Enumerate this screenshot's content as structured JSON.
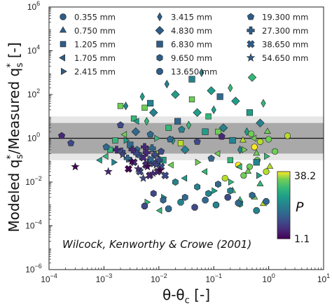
{
  "chart_data": {
    "type": "scatter",
    "title": "",
    "xlabel_main": "θ-θ",
    "xlabel_sub": "c",
    "xlabel_unit": " [-]",
    "ylabel_main": "Modeled q",
    "ylabel_sup1": "*",
    "ylabel_sub1": "s",
    "ylabel_mid": "/Measured q",
    "ylabel_sup2": "*",
    "ylabel_sub2": "s",
    "ylabel_unit": " [-]",
    "x_scale": "log",
    "y_scale": "log",
    "xlim": [
      0.0001,
      10
    ],
    "ylim": [
      1e-06,
      1000000
    ],
    "x_ticks": [
      {
        "value": 0.0001,
        "base": "10",
        "exp": "−4"
      },
      {
        "value": 0.001,
        "base": "10",
        "exp": "−3"
      },
      {
        "value": 0.01,
        "base": "10",
        "exp": "−2"
      },
      {
        "value": 0.1,
        "base": "10",
        "exp": "−1"
      },
      {
        "value": 1,
        "base": "10",
        "exp": "0"
      },
      {
        "value": 10,
        "base": "10",
        "exp": "1"
      }
    ],
    "y_ticks": [
      {
        "value": 1e-06,
        "base": "10",
        "exp": "−6"
      },
      {
        "value": 0.0001,
        "base": "10",
        "exp": "−4"
      },
      {
        "value": 0.01,
        "base": "10",
        "exp": "−2"
      },
      {
        "value": 1,
        "base": "10",
        "exp": "0"
      },
      {
        "value": 100,
        "base": "10",
        "exp": "2"
      },
      {
        "value": 10000,
        "base": "10",
        "exp": "4"
      },
      {
        "value": 1000000,
        "base": "10",
        "exp": "6"
      }
    ],
    "reference_line_y": 1,
    "bands": [
      {
        "low": 0.1,
        "high": 10,
        "color": "#e6e6e6"
      },
      {
        "low": 0.2,
        "high": 5,
        "color": "#a9a9a9"
      }
    ],
    "annotation": "Wilcock, Kenworthy & Crowe (2001)",
    "legend_position": "top",
    "colorbar": {
      "label": "P",
      "min": 1.1,
      "max": 38.2,
      "min_label": "1.1",
      "max_label": "38.2",
      "colormap": "viridis"
    },
    "series": [
      {
        "name": "0.355 mm",
        "marker": "circle",
        "points": [
          [
            0.45,
            0.05
          ],
          [
            0.62,
            0.1
          ],
          [
            0.9,
            0.03
          ],
          [
            1.3,
            0.25
          ],
          [
            2.2,
            1.3
          ],
          [
            0.55,
            0.4
          ],
          [
            0.35,
            0.02
          ],
          [
            0.7,
            0.7
          ],
          [
            0.28,
            0.06
          ],
          [
            1.0,
            0.9
          ],
          [
            0.16,
            0.015
          ],
          [
            0.48,
            1.6
          ]
        ]
      },
      {
        "name": "0.750 mm",
        "marker": "triangle-up",
        "points": [
          [
            0.3,
            0.0015
          ],
          [
            0.55,
            0.002
          ],
          [
            0.8,
            0.001
          ],
          [
            0.7,
            0.008
          ],
          [
            0.42,
            0.03
          ],
          [
            1.05,
            0.05
          ],
          [
            0.22,
            0.004
          ],
          [
            0.6,
            0.2
          ],
          [
            0.34,
            0.8
          ],
          [
            0.95,
            2.0
          ]
        ]
      },
      {
        "name": "1.205 mm",
        "marker": "square",
        "points": [
          [
            0.0013,
            0.3
          ],
          [
            0.0016,
            0.8
          ],
          [
            0.002,
            30
          ],
          [
            0.0035,
            8
          ],
          [
            0.0055,
            25
          ],
          [
            0.009,
            0.2
          ],
          [
            0.015,
            3
          ],
          [
            0.04,
            60
          ],
          [
            0.025,
            0.6
          ],
          [
            0.08,
            10
          ],
          [
            0.12,
            2
          ],
          [
            0.2,
            0.1
          ]
        ]
      },
      {
        "name": "1.705 mm",
        "marker": "triangle-left",
        "points": [
          [
            0.00085,
            0.1
          ],
          [
            0.0011,
            0.15
          ],
          [
            0.0024,
            1.5
          ],
          [
            0.004,
            6
          ],
          [
            0.0105,
            0.0005
          ],
          [
            0.017,
            0.06
          ],
          [
            0.03,
            0.015
          ],
          [
            0.07,
            0.03
          ],
          [
            0.12,
            0.2
          ],
          [
            0.3,
            0.05
          ],
          [
            0.55,
            1.0
          ]
        ]
      },
      {
        "name": "2.415 mm",
        "marker": "triangle-right",
        "points": [
          [
            0.0015,
            0.08
          ],
          [
            0.0025,
            0.8
          ],
          [
            0.006,
            0.0012
          ],
          [
            0.012,
            0.002
          ],
          [
            0.009,
            1.0
          ],
          [
            0.05,
            0.08
          ],
          [
            0.1,
            0.004
          ],
          [
            0.2,
            0.01
          ],
          [
            0.35,
            0.3
          ],
          [
            0.65,
            0.02
          ],
          [
            0.9,
            0.15
          ]
        ]
      },
      {
        "name": "3.415 mm",
        "marker": "diamond",
        "points": [
          [
            0.0025,
            30
          ],
          [
            0.005,
            80
          ],
          [
            0.006,
            6
          ],
          [
            0.014,
            300
          ],
          [
            0.018,
            0.8
          ],
          [
            0.035,
            4
          ],
          [
            0.06,
            1000
          ],
          [
            0.1,
            20
          ],
          [
            0.2,
            200
          ],
          [
            0.4,
            2
          ],
          [
            0.8,
            40
          ],
          [
            0.3,
            0.3
          ]
        ]
      },
      {
        "name": "4.830 mm",
        "marker": "diamond-bold",
        "points": [
          [
            0.0038,
            2
          ],
          [
            0.008,
            15
          ],
          [
            0.02,
            100
          ],
          [
            0.03,
            0.3
          ],
          [
            0.05,
            15
          ],
          [
            0.09,
            150
          ],
          [
            0.15,
            3
          ],
          [
            0.25,
            50
          ],
          [
            0.5,
            600
          ],
          [
            0.7,
            5
          ]
        ]
      },
      {
        "name": "6.830 mm",
        "marker": "square-bold",
        "points": [
          [
            0.003,
            0.5
          ],
          [
            0.007,
            40
          ],
          [
            0.012,
            0.1
          ],
          [
            0.022,
            6
          ],
          [
            0.04,
            500
          ],
          [
            0.07,
            2
          ],
          [
            0.13,
            80
          ],
          [
            0.22,
            0.8
          ],
          [
            0.45,
            15
          ],
          [
            0.6,
            0.08
          ]
        ]
      },
      {
        "name": "9.650 mm",
        "marker": "hexagon",
        "points": [
          [
            0.008,
            0.003
          ],
          [
            0.012,
            0.0015
          ],
          [
            0.02,
            0.01
          ],
          [
            0.03,
            0.002
          ],
          [
            0.05,
            0.006
          ],
          [
            0.08,
            0.003
          ],
          [
            0.12,
            0.008
          ],
          [
            0.2,
            0.004
          ],
          [
            0.3,
            0.001
          ],
          [
            0.5,
            0.0025
          ]
        ]
      },
      {
        "name": "13.650 mm",
        "marker": "octagon",
        "points": [
          [
            0.0055,
            0.0008
          ],
          [
            0.015,
            0.0006
          ],
          [
            0.025,
            0.0012
          ],
          [
            0.045,
            0.0007
          ],
          [
            0.07,
            0.0015
          ],
          [
            0.11,
            0.0009
          ],
          [
            0.18,
            0.002
          ],
          [
            0.28,
            0.0011
          ],
          [
            0.6,
            0.0005
          ],
          [
            0.9,
            0.0013
          ]
        ]
      },
      {
        "name": "19.300 mm",
        "marker": "pentagon",
        "points": [
          [
            0.00017,
            1.3
          ],
          [
            0.00025,
            0.6
          ],
          [
            0.0011,
            0.4
          ],
          [
            0.002,
            4
          ],
          [
            0.004,
            0.3
          ],
          [
            0.007,
            1.5
          ],
          [
            0.011,
            0.25
          ],
          [
            0.016,
            0.9
          ],
          [
            0.026,
            2.5
          ],
          [
            0.05,
            0.7
          ],
          [
            0.09,
            0.12
          ],
          [
            0.14,
            1.2
          ]
        ]
      },
      {
        "name": "27.300 mm",
        "marker": "plus",
        "points": [
          [
            0.0017,
            0.3
          ],
          [
            0.0021,
            0.25
          ],
          [
            0.0027,
            0.12
          ],
          [
            0.0033,
            0.3
          ],
          [
            0.004,
            0.2
          ],
          [
            0.0047,
            0.15
          ],
          [
            0.0055,
            0.4
          ],
          [
            0.0065,
            0.08
          ],
          [
            0.0075,
            0.35
          ],
          [
            0.0085,
            0.18
          ],
          [
            0.01,
            0.1
          ],
          [
            0.006,
            0.22
          ]
        ]
      },
      {
        "name": "38.650 mm",
        "marker": "x",
        "points": [
          [
            0.0028,
            0.04
          ],
          [
            0.0035,
            0.08
          ],
          [
            0.0045,
            0.03
          ],
          [
            0.0058,
            0.06
          ],
          [
            0.0068,
            0.02
          ],
          [
            0.008,
            0.07
          ],
          [
            0.0095,
            0.03
          ],
          [
            0.011,
            0.05
          ],
          [
            0.0072,
            0.11
          ],
          [
            0.0052,
            0.13
          ],
          [
            0.013,
            0.02
          ]
        ]
      },
      {
        "name": "54.650 mm",
        "marker": "star",
        "points": [
          [
            0.0003,
            0.05
          ],
          [
            0.0012,
            0.03
          ],
          [
            0.0022,
            0.18
          ],
          [
            0.0032,
            0.09
          ],
          [
            0.0042,
            0.04
          ],
          [
            0.0052,
            0.015
          ],
          [
            0.0062,
            0.05
          ],
          [
            0.0078,
            0.025
          ],
          [
            0.009,
            0.06
          ],
          [
            0.0105,
            0.035
          ]
        ]
      }
    ]
  }
}
